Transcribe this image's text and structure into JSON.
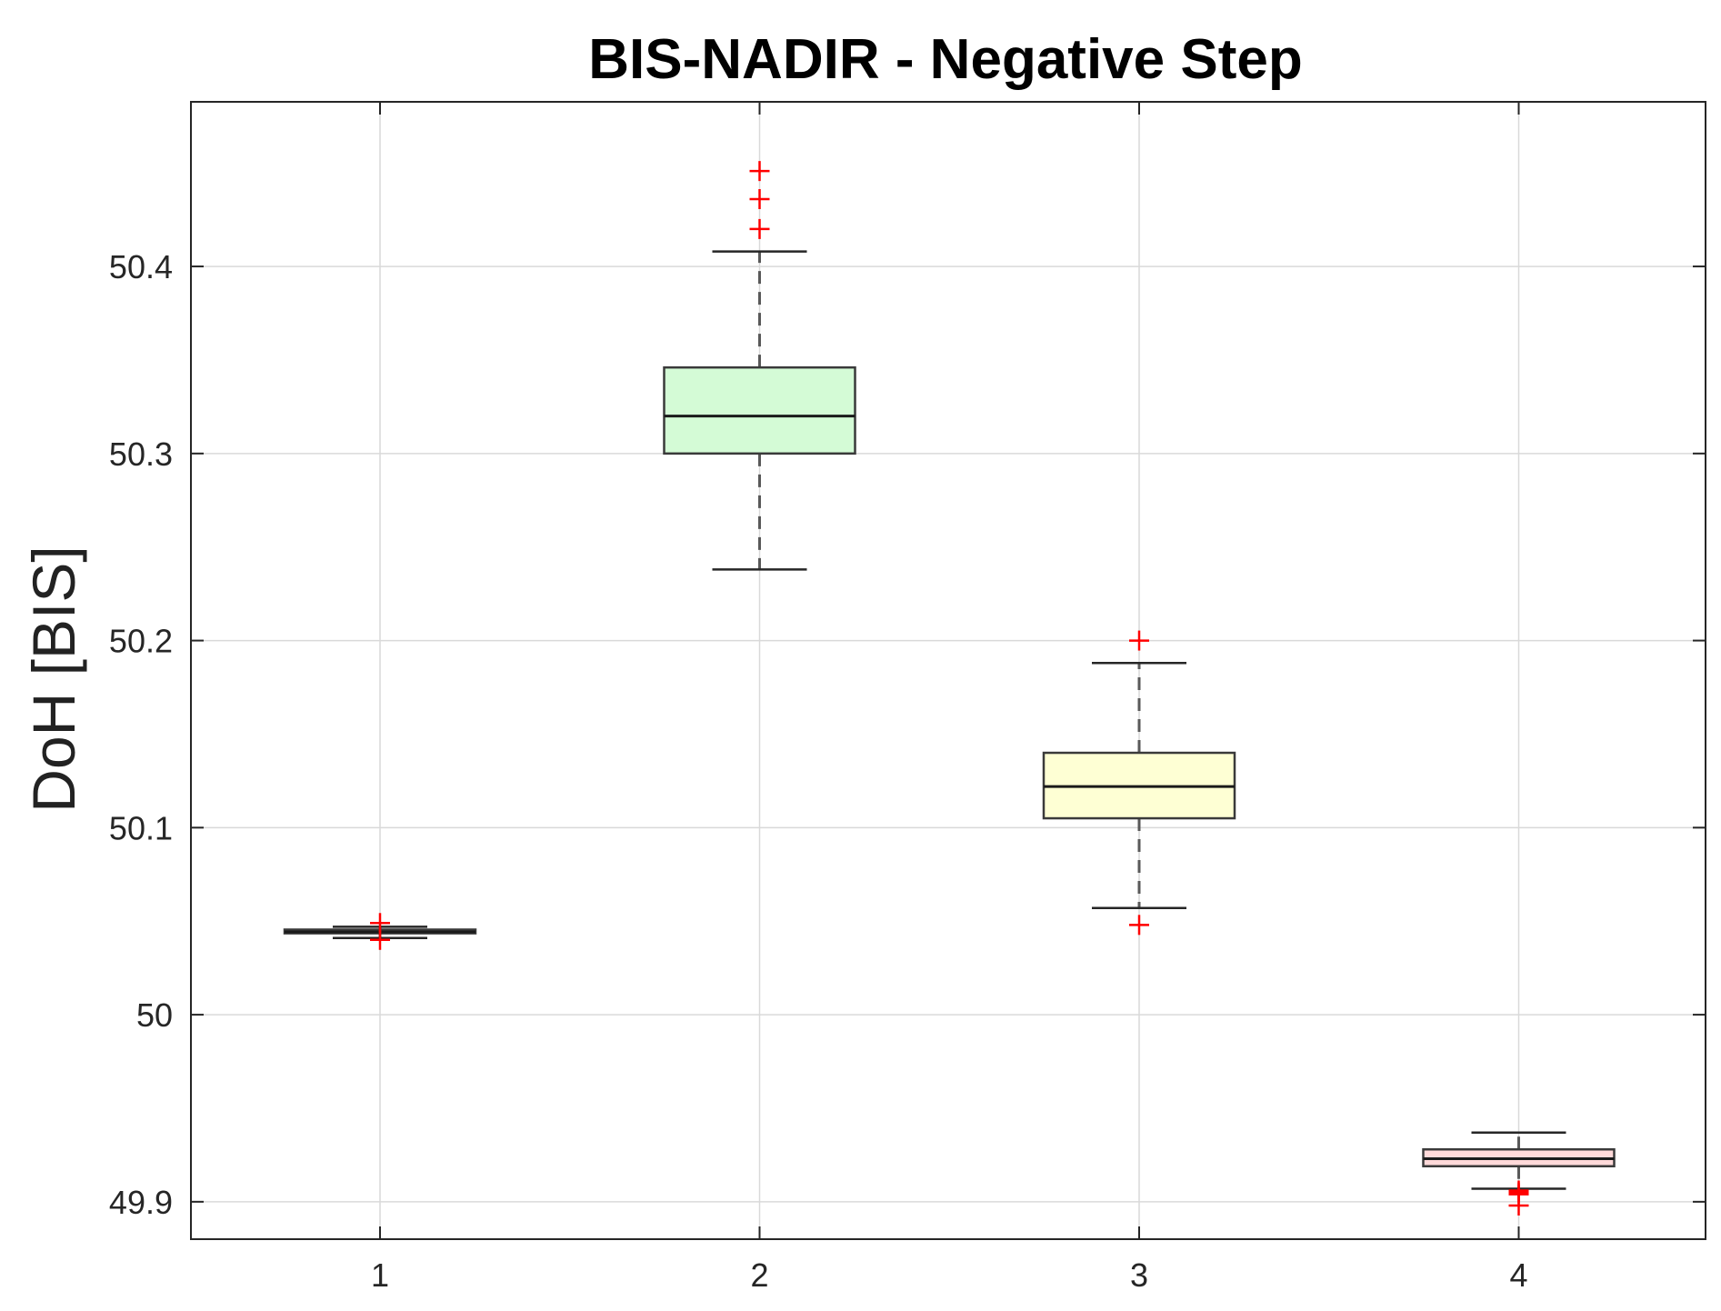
{
  "chart_data": {
    "type": "boxplot",
    "title": "BIS-NADIR - Negative Step",
    "xlabel": "",
    "ylabel": "DoH [BIS]",
    "categories": [
      "1",
      "2",
      "3",
      "4"
    ],
    "ylim": [
      49.88,
      50.488
    ],
    "yticks": [
      49.9,
      50,
      50.1,
      50.2,
      50.3,
      50.4
    ],
    "ytick_labels": [
      "49.9",
      "50",
      "50.1",
      "50.2",
      "50.3",
      "50.4"
    ],
    "grid": true,
    "boxes": [
      {
        "category": "1",
        "whisker_low": 50.041,
        "q1": 50.0435,
        "median": 50.0443,
        "q3": 50.0455,
        "whisker_high": 50.047,
        "outliers": [
          50.049,
          50.04
        ],
        "fill": "#bfbfbf"
      },
      {
        "category": "2",
        "whisker_low": 50.238,
        "q1": 50.3,
        "median": 50.32,
        "q3": 50.346,
        "whisker_high": 50.408,
        "outliers": [
          50.451,
          50.436,
          50.42
        ],
        "fill": "#d4fbd6"
      },
      {
        "category": "3",
        "whisker_low": 50.057,
        "q1": 50.105,
        "median": 50.122,
        "q3": 50.14,
        "whisker_high": 50.188,
        "outliers": [
          50.2,
          50.048
        ],
        "fill": "#feffd4"
      },
      {
        "category": "4",
        "whisker_low": 49.907,
        "q1": 49.919,
        "median": 49.923,
        "q3": 49.928,
        "whisker_high": 49.937,
        "outliers": [
          49.906,
          49.905,
          49.904,
          49.898
        ],
        "fill": "#ffd9d9"
      }
    ],
    "colors": {
      "outlier": "#ff0000",
      "box_edge": "#3a3a3a",
      "median": "#1a1a1a",
      "whisker": "#595959"
    }
  }
}
